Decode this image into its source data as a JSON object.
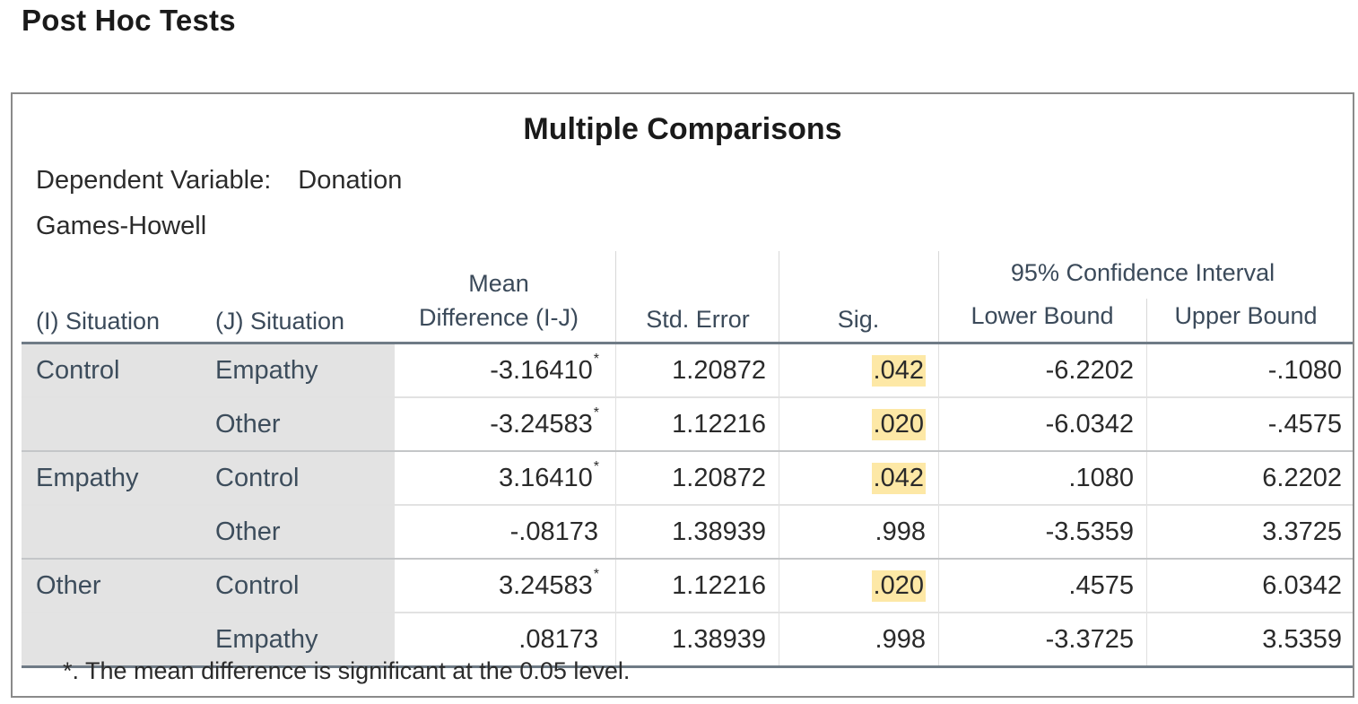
{
  "section_title": "Post Hoc Tests",
  "table": {
    "title": "Multiple Comparisons",
    "dependent_variable_label": "Dependent Variable:",
    "dependent_variable_value": "Donation",
    "method": "Games-Howell",
    "headers": {
      "i_situation": "(I) Situation",
      "j_situation": "(J) Situation",
      "mean_diff_line1": "Mean",
      "mean_diff_line2": "Difference (I-J)",
      "std_error": "Std. Error",
      "sig": "Sig.",
      "ci_group": "95% Confidence Interval",
      "lower_bound": "Lower Bound",
      "upper_bound": "Upper Bound"
    },
    "rows": [
      {
        "i": "Control",
        "j": "Empathy",
        "md": "-3.16410",
        "star": "*",
        "se": "1.20872",
        "sig": ".042",
        "lb": "-6.2202",
        "ub": "-.1080"
      },
      {
        "i": "",
        "j": "Other",
        "md": "-3.24583",
        "star": "*",
        "se": "1.12216",
        "sig": ".020",
        "lb": "-6.0342",
        "ub": "-.4575"
      },
      {
        "i": "Empathy",
        "j": "Control",
        "md": "3.16410",
        "star": "*",
        "se": "1.20872",
        "sig": ".042",
        "lb": ".1080",
        "ub": "6.2202"
      },
      {
        "i": "",
        "j": "Other",
        "md": "-.08173",
        "star": "",
        "se": "1.38939",
        "sig": ".998",
        "lb": "-3.5359",
        "ub": "3.3725"
      },
      {
        "i": "Other",
        "j": "Control",
        "md": "3.24583",
        "star": "*",
        "se": "1.12216",
        "sig": ".020",
        "lb": ".4575",
        "ub": "6.0342"
      },
      {
        "i": "",
        "j": "Empathy",
        "md": ".08173",
        "star": "",
        "se": "1.38939",
        "sig": ".998",
        "lb": "-3.3725",
        "ub": "3.5359"
      }
    ],
    "highlight_color": "#fde8a6",
    "footnote": "*. The mean difference is significant at the 0.05 level."
  }
}
